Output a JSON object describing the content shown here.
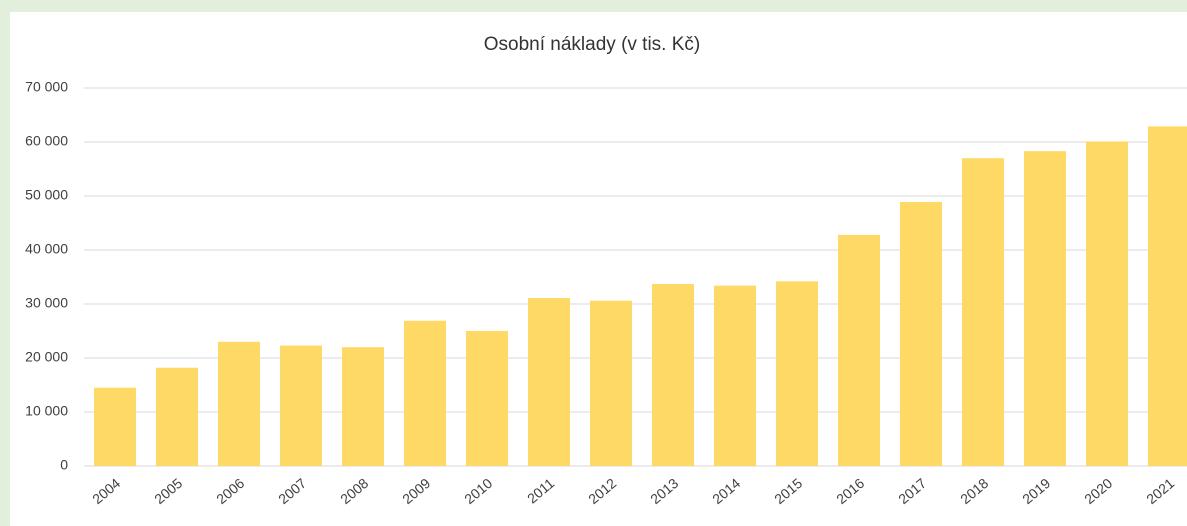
{
  "chart_data": {
    "type": "bar",
    "title": "Osobní náklady (v tis. Kč)",
    "categories": [
      "2004",
      "2005",
      "2006",
      "2007",
      "2008",
      "2009",
      "2010",
      "2011",
      "2012",
      "2013",
      "2014",
      "2015",
      "2016",
      "2017",
      "2018",
      "2019",
      "2020",
      "2021"
    ],
    "values": [
      14500,
      18200,
      23000,
      22300,
      22000,
      26900,
      25000,
      31100,
      30600,
      33700,
      33400,
      34200,
      42800,
      48900,
      57000,
      58300,
      60100,
      62900
    ],
    "color": "#ffd966",
    "ylim": [
      0,
      70000
    ],
    "yticks": [
      0,
      {
        "value": 10000,
        "label": "10 000"
      },
      {
        "value": 20000,
        "label": "20 000"
      },
      {
        "value": 30000,
        "label": "30 000"
      },
      {
        "value": 40000,
        "label": "40 000"
      },
      {
        "value": 50000,
        "label": "50 000"
      },
      {
        "value": 60000,
        "label": "60 000"
      },
      {
        "value": 70000,
        "label": "70 000"
      }
    ],
    "grid": true
  }
}
